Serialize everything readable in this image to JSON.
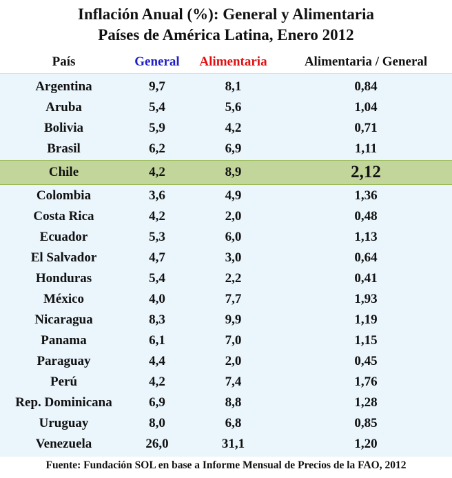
{
  "title_line1": "Inflación Anual (%): General y Alimentaria",
  "title_line2": "Países de América Latina, Enero 2012",
  "headers": {
    "country": "País",
    "general": "General",
    "food": "Alimentaria",
    "ratio": "Alimentaria / General"
  },
  "colors": {
    "general_header": "#1f1fc8",
    "food_header": "#e01010",
    "table_background": "#eaf5fc",
    "highlight_row": "#c2d69b"
  },
  "highlighted_country": "Chile",
  "source": "Fuente: Fundación SOL en base a Informe Mensual de Precios de la FAO, 2012",
  "chart_data": {
    "type": "table",
    "columns": [
      "País",
      "General",
      "Alimentaria",
      "Alimentaria / General"
    ],
    "rows": [
      [
        "Argentina",
        "9,7",
        "8,1",
        "0,84"
      ],
      [
        "Aruba",
        "5,4",
        "5,6",
        "1,04"
      ],
      [
        "Bolivia",
        "5,9",
        "4,2",
        "0,71"
      ],
      [
        "Brasil",
        "6,2",
        "6,9",
        "1,11"
      ],
      [
        "Chile",
        "4,2",
        "8,9",
        "2,12"
      ],
      [
        "Colombia",
        "3,6",
        "4,9",
        "1,36"
      ],
      [
        "Costa Rica",
        "4,2",
        "2,0",
        "0,48"
      ],
      [
        "Ecuador",
        "5,3",
        "6,0",
        "1,13"
      ],
      [
        "El Salvador",
        "4,7",
        "3,0",
        "0,64"
      ],
      [
        "Honduras",
        "5,4",
        "2,2",
        "0,41"
      ],
      [
        "México",
        "4,0",
        "7,7",
        "1,93"
      ],
      [
        "Nicaragua",
        "8,3",
        "9,9",
        "1,19"
      ],
      [
        "Panama",
        "6,1",
        "7,0",
        "1,15"
      ],
      [
        "Paraguay",
        "4,4",
        "2,0",
        "0,45"
      ],
      [
        "Perú",
        "4,2",
        "7,4",
        "1,76"
      ],
      [
        "Rep. Dominicana",
        "6,9",
        "8,8",
        "1,28"
      ],
      [
        "Uruguay",
        "8,0",
        "6,8",
        "0,85"
      ],
      [
        "Venezuela",
        "26,0",
        "31,1",
        "1,20"
      ]
    ]
  }
}
